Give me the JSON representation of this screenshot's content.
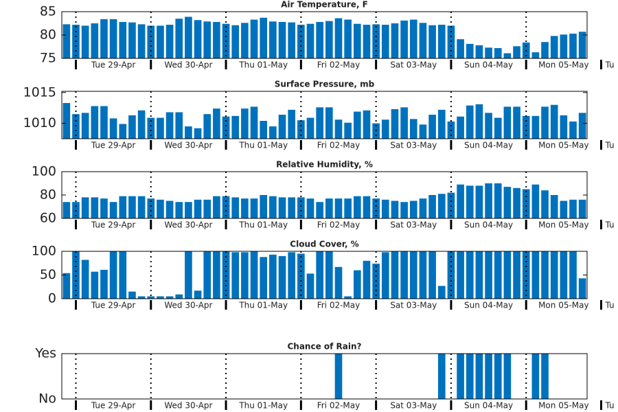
{
  "chart_data": [
    {
      "type": "bar",
      "title": "Air Temperature, F",
      "color": "#0072bd",
      "x": [
        -3,
        0,
        3,
        6,
        9,
        12,
        15,
        18,
        21,
        24,
        27,
        30,
        33,
        36,
        39,
        42,
        45,
        48,
        51,
        54,
        57,
        60,
        63,
        66,
        69,
        72,
        75,
        78,
        81,
        84,
        87,
        90,
        93,
        96,
        99,
        102,
        105,
        108,
        111,
        114,
        117,
        120,
        123,
        126,
        129,
        132,
        135,
        138,
        141,
        144,
        147,
        150,
        153,
        156,
        159,
        162
      ],
      "values": [
        82.3,
        82.2,
        82.0,
        82.5,
        83.4,
        83.4,
        82.8,
        82.7,
        82.3,
        82.0,
        82.0,
        82.2,
        83.5,
        83.9,
        83.2,
        82.9,
        82.8,
        82.4,
        82.1,
        82.6,
        83.3,
        83.7,
        82.9,
        82.8,
        82.7,
        82.2,
        82.4,
        82.8,
        83.0,
        83.6,
        83.3,
        82.4,
        82.2,
        82.3,
        82.2,
        82.5,
        83.1,
        83.3,
        82.6,
        82.1,
        82.2,
        82.0,
        79.1,
        78.1,
        77.8,
        77.3,
        77.2,
        76.1,
        77.6,
        78.4,
        76.3,
        78.5,
        79.8,
        80.1,
        80.3,
        80.7
      ],
      "xlim": [
        -4.5,
        163.5
      ],
      "xticks": [
        {
          "value": 0,
          "label": "Tue 29-Apr"
        },
        {
          "value": 24,
          "label": "Wed 30-Apr"
        },
        {
          "value": 48,
          "label": "Thu 01-May"
        },
        {
          "value": 72,
          "label": "Fri 02-May"
        },
        {
          "value": 96,
          "label": "Sat 03-May"
        },
        {
          "value": 120,
          "label": "Sun 04-May"
        },
        {
          "value": 144,
          "label": "Mon 05-May"
        },
        {
          "value": 168,
          "label": "Tu"
        }
      ],
      "ylim": [
        75,
        85
      ],
      "yticks": [
        75,
        80,
        85
      ]
    },
    {
      "type": "bar",
      "title": "Surface Pressure, mb",
      "color": "#0072bd",
      "x": [
        -3,
        0,
        3,
        6,
        9,
        12,
        15,
        18,
        21,
        24,
        27,
        30,
        33,
        36,
        39,
        42,
        45,
        48,
        51,
        54,
        57,
        60,
        63,
        66,
        69,
        72,
        75,
        78,
        81,
        84,
        87,
        90,
        93,
        96,
        99,
        102,
        105,
        108,
        111,
        114,
        117,
        120,
        123,
        126,
        129,
        132,
        135,
        138,
        141,
        144,
        147,
        150,
        153,
        156,
        159,
        162
      ],
      "values": [
        1013.3,
        1011.5,
        1011.7,
        1012.8,
        1012.8,
        1010.8,
        1009.9,
        1011.3,
        1012.1,
        1010.9,
        1010.9,
        1011.8,
        1011.8,
        1009.5,
        1009.2,
        1011.5,
        1012.4,
        1011.1,
        1011.2,
        1012.4,
        1012.7,
        1010.4,
        1009.5,
        1011.4,
        1012.2,
        1010.5,
        1010.9,
        1012.6,
        1012.6,
        1010.6,
        1010.1,
        1011.9,
        1012.1,
        1010.0,
        1010.6,
        1012.3,
        1012.6,
        1010.7,
        1009.8,
        1011.4,
        1012.2,
        1010.3,
        1011.1,
        1012.9,
        1013.1,
        1011.7,
        1010.9,
        1012.7,
        1012.7,
        1011.2,
        1011.2,
        1012.7,
        1013.0,
        1011.3,
        1010.3,
        1011.7
      ],
      "xlim": [
        -4.5,
        163.5
      ],
      "xticks": [
        {
          "value": 0,
          "label": "Tue 29-Apr"
        },
        {
          "value": 24,
          "label": "Wed 30-Apr"
        },
        {
          "value": 48,
          "label": "Thu 01-May"
        },
        {
          "value": 72,
          "label": "Fri 02-May"
        },
        {
          "value": 96,
          "label": "Sat 03-May"
        },
        {
          "value": 120,
          "label": "Sun 04-May"
        },
        {
          "value": 144,
          "label": "Mon 05-May"
        },
        {
          "value": 168,
          "label": "Tu"
        }
      ],
      "ylim": [
        1007.5,
        1015.2
      ],
      "yticks": [
        1010,
        1015
      ]
    },
    {
      "type": "bar",
      "title": "Relative Humidity, %",
      "color": "#0072bd",
      "x": [
        -3,
        0,
        3,
        6,
        9,
        12,
        15,
        18,
        21,
        24,
        27,
        30,
        33,
        36,
        39,
        42,
        45,
        48,
        51,
        54,
        57,
        60,
        63,
        66,
        69,
        72,
        75,
        78,
        81,
        84,
        87,
        90,
        93,
        96,
        99,
        102,
        105,
        108,
        111,
        114,
        117,
        120,
        123,
        126,
        129,
        132,
        135,
        138,
        141,
        144,
        147,
        150,
        153,
        156,
        159,
        162
      ],
      "values": [
        74,
        74,
        78,
        78,
        77,
        74,
        79,
        79,
        79,
        77,
        76,
        75,
        74,
        74,
        76,
        76,
        79,
        79,
        78,
        77,
        77,
        80,
        79,
        78,
        78,
        78,
        77,
        74,
        77,
        77,
        77,
        79,
        79,
        77,
        76,
        75,
        74,
        75,
        77,
        80,
        81,
        82,
        89,
        88,
        88,
        90,
        90,
        87,
        86,
        85,
        89,
        84,
        80,
        75,
        76,
        76
      ],
      "xlim": [
        -4.5,
        163.5
      ],
      "xticks": [
        {
          "value": 0,
          "label": "Tue 29-Apr"
        },
        {
          "value": 24,
          "label": "Wed 30-Apr"
        },
        {
          "value": 48,
          "label": "Thu 01-May"
        },
        {
          "value": 72,
          "label": "Fri 02-May"
        },
        {
          "value": 96,
          "label": "Sat 03-May"
        },
        {
          "value": 120,
          "label": "Sun 04-May"
        },
        {
          "value": 144,
          "label": "Mon 05-May"
        },
        {
          "value": 168,
          "label": "Tu"
        }
      ],
      "ylim": [
        60,
        100
      ],
      "yticks": [
        60,
        80,
        100
      ]
    },
    {
      "type": "bar",
      "title": "Cloud Cover, %",
      "color": "#0072bd",
      "x": [
        -3,
        0,
        3,
        6,
        9,
        12,
        15,
        18,
        21,
        24,
        27,
        30,
        33,
        36,
        39,
        42,
        45,
        48,
        51,
        54,
        57,
        60,
        63,
        66,
        69,
        72,
        75,
        78,
        81,
        84,
        87,
        90,
        93,
        96,
        99,
        102,
        105,
        108,
        111,
        114,
        117,
        120,
        123,
        126,
        129,
        132,
        135,
        138,
        141,
        144,
        147,
        150,
        153,
        156,
        159,
        162
      ],
      "values": [
        54,
        100,
        82,
        57,
        61,
        100,
        100,
        15,
        5,
        5,
        5,
        5,
        9,
        100,
        17,
        100,
        100,
        100,
        98,
        98,
        100,
        88,
        93,
        90,
        98,
        95,
        53,
        100,
        100,
        67,
        5,
        60,
        80,
        74,
        98,
        100,
        100,
        100,
        100,
        100,
        27,
        100,
        100,
        100,
        100,
        100,
        100,
        100,
        100,
        100,
        100,
        100,
        100,
        100,
        100,
        43
      ],
      "xlim": [
        -4.5,
        163.5
      ],
      "xticks": [
        {
          "value": 0,
          "label": "Tue 29-Apr"
        },
        {
          "value": 24,
          "label": "Wed 30-Apr"
        },
        {
          "value": 48,
          "label": "Thu 01-May"
        },
        {
          "value": 72,
          "label": "Fri 02-May"
        },
        {
          "value": 96,
          "label": "Sat 03-May"
        },
        {
          "value": 120,
          "label": "Sun 04-May"
        },
        {
          "value": 144,
          "label": "Mon 05-May"
        },
        {
          "value": 168,
          "label": "Tu"
        }
      ],
      "ylim": [
        0,
        100
      ],
      "yticks": [
        0,
        50,
        100
      ]
    },
    {
      "type": "bar",
      "title": "Chance of Rain?",
      "color": "#0072bd",
      "x": [
        -3,
        0,
        3,
        6,
        9,
        12,
        15,
        18,
        21,
        24,
        27,
        30,
        33,
        36,
        39,
        42,
        45,
        48,
        51,
        54,
        57,
        60,
        63,
        66,
        69,
        72,
        75,
        78,
        81,
        84,
        87,
        90,
        93,
        96,
        99,
        102,
        105,
        108,
        111,
        114,
        117,
        120,
        123,
        126,
        129,
        132,
        135,
        138,
        141,
        144,
        147,
        150,
        153,
        156,
        159,
        162
      ],
      "values": [
        0,
        0,
        0,
        0,
        0,
        0,
        0,
        0,
        0,
        0,
        0,
        0,
        0,
        0,
        0,
        0,
        0,
        0,
        0,
        0,
        0,
        0,
        0,
        0,
        0,
        0,
        0,
        0,
        0,
        1,
        0,
        0,
        0,
        0,
        0,
        0,
        0,
        0,
        0,
        0,
        1,
        0,
        1,
        1,
        1,
        1,
        1,
        1,
        0,
        0,
        1,
        1,
        0,
        0,
        0,
        0
      ],
      "xlim": [
        -4.5,
        163.5
      ],
      "xticks": [
        {
          "value": 0,
          "label": "Tue 29-Apr"
        },
        {
          "value": 24,
          "label": "Wed 30-Apr"
        },
        {
          "value": 48,
          "label": "Thu 01-May"
        },
        {
          "value": 72,
          "label": "Fri 02-May"
        },
        {
          "value": 96,
          "label": "Sat 03-May"
        },
        {
          "value": 120,
          "label": "Sun 04-May"
        },
        {
          "value": 144,
          "label": "Mon 05-May"
        },
        {
          "value": 168,
          "label": "Tu"
        }
      ],
      "ylim": [
        0,
        1
      ],
      "yticks": [
        {
          "value": 0,
          "label": "No"
        },
        {
          "value": 1,
          "label": "Yes"
        }
      ]
    }
  ]
}
